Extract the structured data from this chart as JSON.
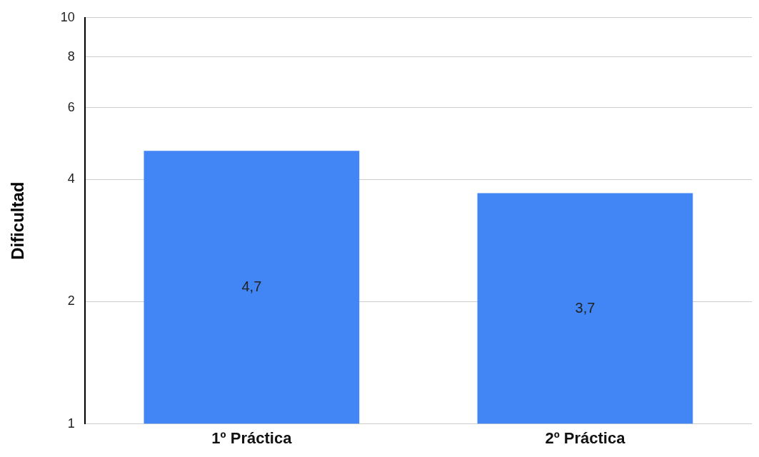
{
  "chart_data": {
    "type": "bar",
    "ylabel": "Dificultad",
    "categories": [
      "1º Práctica",
      "2º Práctica"
    ],
    "values": [
      4.7,
      3.7
    ],
    "color": "#4285f4",
    "value_labels": [
      "4,7",
      "3,7"
    ],
    "log": true,
    "ylim": [
      1,
      10
    ],
    "yticks": [
      1,
      2,
      4,
      6,
      8,
      10
    ],
    "grid": "y",
    "legend": false
  }
}
